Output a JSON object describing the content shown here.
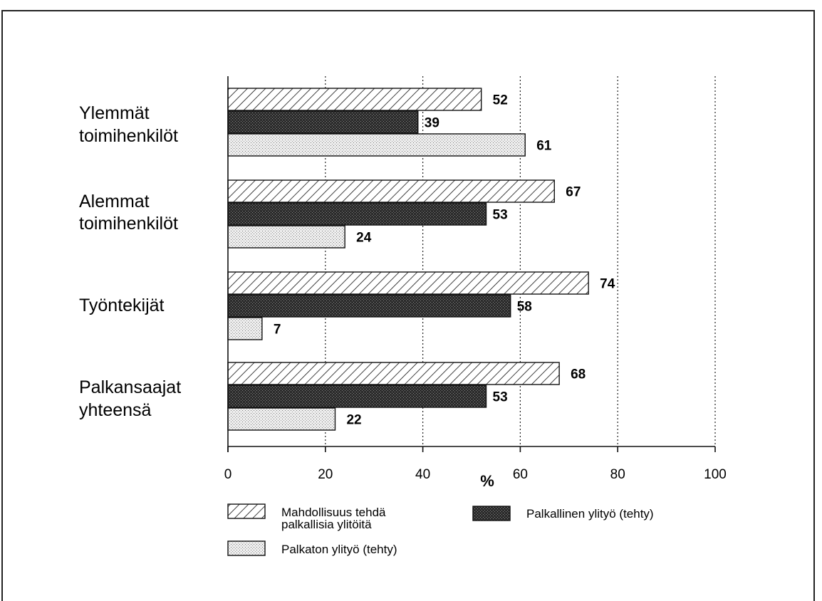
{
  "chart_data": {
    "type": "bar",
    "orientation": "horizontal",
    "categories": [
      [
        "Ylemmät",
        "toimihenkilöt"
      ],
      [
        "Alemmat",
        "toimihenkilöt"
      ],
      [
        "Työntekijät"
      ],
      [
        "Palkansaajat",
        "yhteensä"
      ]
    ],
    "series": [
      {
        "name": [
          "Mahdollisuus tehdä",
          "palkallisia ylitöitä"
        ],
        "values": [
          52,
          67,
          74,
          68
        ],
        "pattern": "diagonal-hatch"
      },
      {
        "name": [
          "Palkallinen ylityö  (tehty)"
        ],
        "values": [
          39,
          53,
          58,
          53
        ],
        "pattern": "dense-dark"
      },
      {
        "name": [
          "Palkaton ylityö  (tehty)"
        ],
        "values": [
          61,
          24,
          7,
          22
        ],
        "pattern": "light-dots"
      }
    ],
    "xlabel": "%",
    "xlim": [
      0,
      100
    ],
    "xticks": [
      0,
      20,
      40,
      60,
      80,
      100
    ],
    "grid": "vertical dotted",
    "legend": "bottom"
  }
}
